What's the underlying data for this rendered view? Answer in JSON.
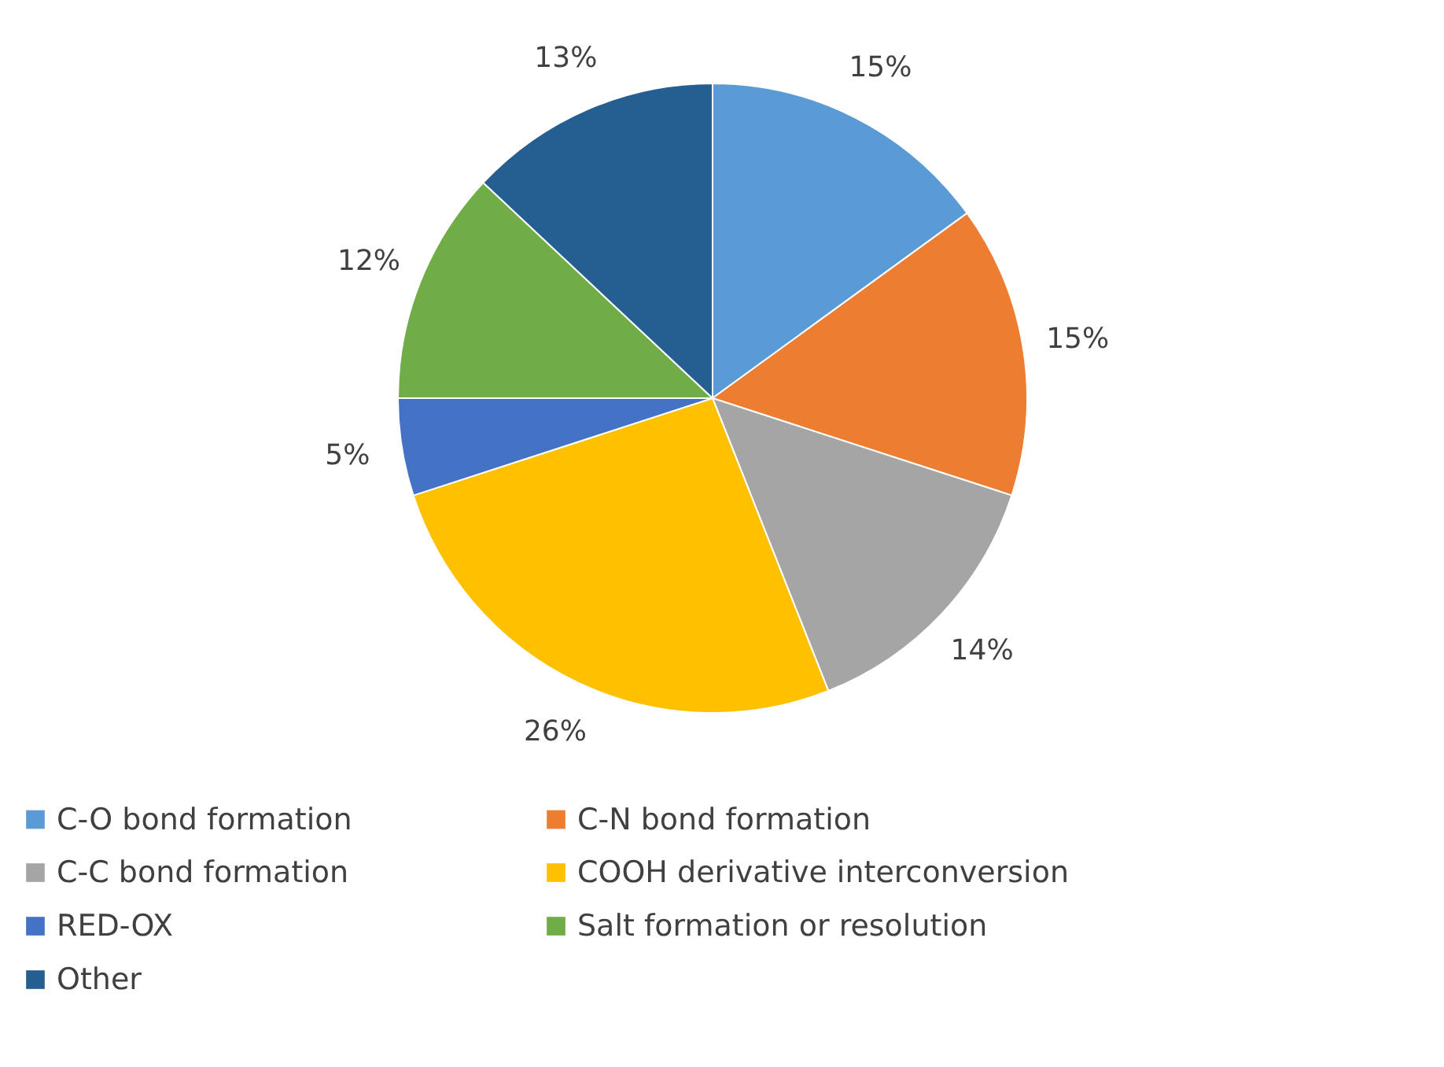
{
  "chart_data": {
    "type": "pie",
    "categories": [
      "C-O bond formation",
      "C-N bond formation",
      "C-C bond formation",
      "COOH derivative interconversion",
      "RED-OX",
      "Salt formation or resolution",
      "Other"
    ],
    "values": [
      15,
      15,
      14,
      26,
      5,
      12,
      13
    ],
    "value_labels": [
      "15%",
      "15%",
      "14%",
      "26%",
      "5%",
      "12%",
      "13%"
    ],
    "colors": [
      "#5b9bd5",
      "#ed7d31",
      "#a5a5a5",
      "#ffc000",
      "#4472c4",
      "#70ad47",
      "#255e91"
    ],
    "legend": "bottom"
  }
}
